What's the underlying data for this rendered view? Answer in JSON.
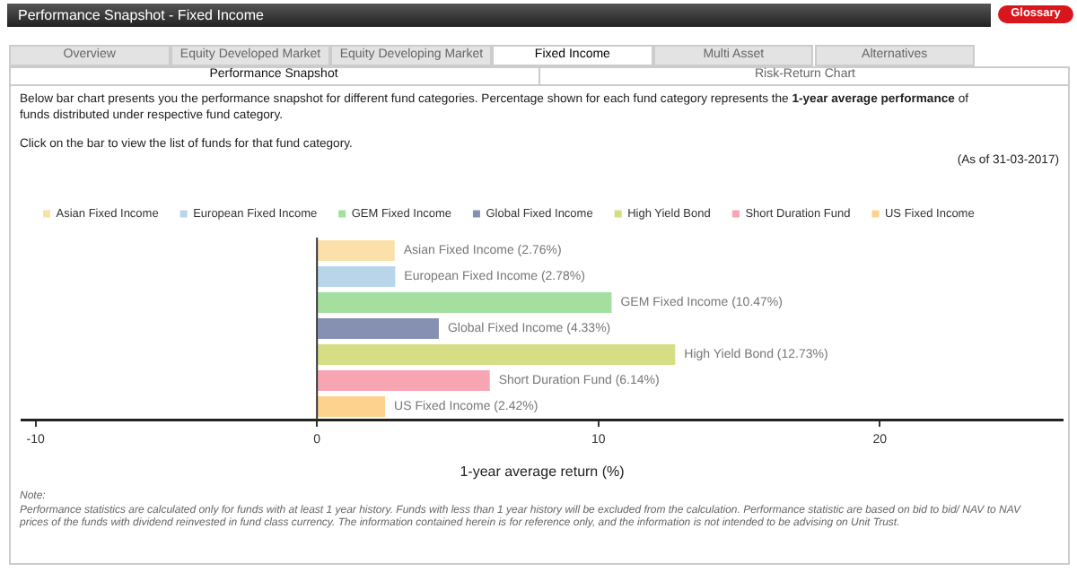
{
  "chart_data": {
    "type": "bar",
    "orientation": "horizontal",
    "title": "Performance Snapshot - Fixed Income",
    "xlabel": "1-year average return (%)",
    "categories": [
      null,
      null,
      null,
      null,
      null,
      null,
      null
    ],
    "series": [
      {
        "name": "Asian Fixed Income",
        "color": "#fbe1a9",
        "values": [
          2.76,
          null,
          null,
          null,
          null,
          null,
          null
        ],
        "value_labels": [
          "Asian Fixed Income (2.76%)",
          null,
          null,
          null,
          null,
          null,
          null
        ]
      },
      {
        "name": "European Fixed Income",
        "color": "#b9d5ea",
        "values": [
          null,
          2.78,
          null,
          null,
          null,
          null,
          null
        ],
        "value_labels": [
          null,
          "European Fixed Income (2.78%)",
          null,
          null,
          null,
          null,
          null
        ]
      },
      {
        "name": "GEM Fixed Income",
        "color": "#a4dfa0",
        "values": [
          null,
          null,
          10.47,
          null,
          null,
          null,
          null
        ],
        "value_labels": [
          null,
          null,
          "GEM Fixed Income (10.47%)",
          null,
          null,
          null,
          null
        ]
      },
      {
        "name": "Global Fixed Income",
        "color": "#8690b2",
        "values": [
          null,
          null,
          null,
          4.33,
          null,
          null,
          null
        ],
        "value_labels": [
          null,
          null,
          null,
          "Global Fixed Income (4.33%)",
          null,
          null,
          null
        ]
      },
      {
        "name": "High Yield Bond",
        "color": "#d5dd85",
        "values": [
          null,
          null,
          null,
          null,
          12.73,
          null,
          null
        ],
        "value_labels": [
          null,
          null,
          null,
          null,
          "High Yield Bond (12.73%)",
          null,
          null
        ]
      },
      {
        "name": "Short Duration Fund",
        "color": "#f8a5b3",
        "values": [
          null,
          null,
          null,
          null,
          null,
          6.14,
          null
        ],
        "value_labels": [
          null,
          null,
          null,
          null,
          null,
          "Short Duration Fund (6.14%)",
          null
        ]
      },
      {
        "name": "US Fixed Income",
        "color": "#fdd28f",
        "values": [
          null,
          null,
          null,
          null,
          null,
          null,
          2.42
        ],
        "value_labels": [
          null,
          null,
          null,
          null,
          null,
          null,
          "US Fixed Income (2.42%)"
        ]
      }
    ],
    "xlim": [
      -10.5,
      26.5
    ],
    "xticks": [
      -10,
      0,
      10,
      20
    ],
    "legend": "top left",
    "tick_labels": "x",
    "ref_lines": [
      {
        "axis": "x",
        "value": 0,
        "color": "#333333"
      }
    ],
    "annotations": [
      "Glossary",
      "Overview",
      "Equity Developed Market",
      "Equity Developing Market",
      "Fixed Income",
      "Multi Asset",
      "Alternatives",
      "Performance Snapshot",
      "Risk-Return Chart",
      "Below bar chart presents you the performance snapshot for different fund categories. Percentage shown for each fund category represents the",
      "1-year average performance",
      "of funds distributed under respective fund category.",
      "Click on the bar to view the list of funds for that fund category.",
      "(As of 31-03-2017)",
      "Note:",
      "Performance statistics are calculated only for funds with at least 1 year history. Funds with less than 1 year history will be excluded from the calculation. Performance statistic are based on bid to bid/ NAV to NAV prices of the funds with dividend reinvested in fund class currency. The information contained herein is for reference only, and the information is not intended to be advising on Unit Trust."
    ]
  }
}
